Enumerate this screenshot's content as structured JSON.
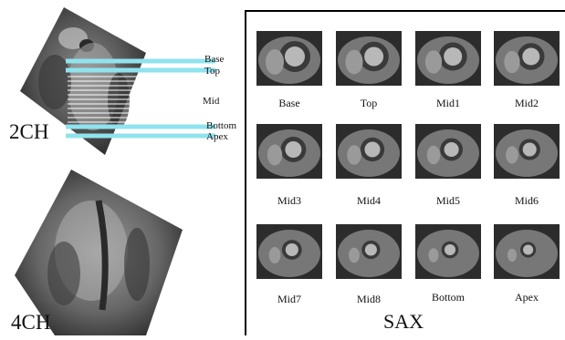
{
  "views": {
    "two_chamber": {
      "label": "2CH",
      "levels": {
        "base": "Base",
        "top": "Top",
        "mid": "Mid",
        "bottom": "Bottom",
        "apex": "Apex"
      }
    },
    "four_chamber": {
      "label": "4CH"
    }
  },
  "sax": {
    "title": "SAX",
    "slices": [
      "Base",
      "Top",
      "Mid1",
      "Mid2",
      "Mid3",
      "Mid4",
      "Mid5",
      "Mid6",
      "Mid7",
      "Mid8",
      "Bottom",
      "Apex"
    ]
  },
  "colors": {
    "slice_line": "#8fe3ee",
    "mid_line": "#ffffff",
    "image_bg": "#1a1a1a",
    "panel_border": "#000000"
  }
}
